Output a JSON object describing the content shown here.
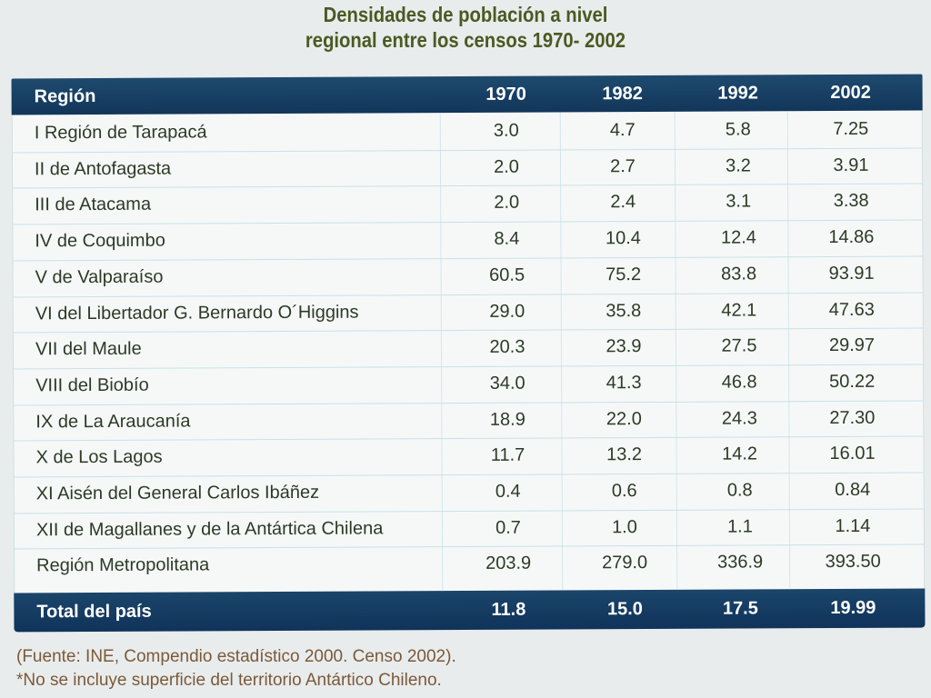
{
  "title": {
    "line1": "Densidades de población a nivel",
    "line2": "regional entre los censos 1970- 2002"
  },
  "table": {
    "headers": [
      "Región",
      "1970",
      "1982",
      "1992",
      "2002"
    ],
    "rows": [
      [
        "I Región de Tarapacá",
        "3.0",
        "4.7",
        "5.8",
        "7.25"
      ],
      [
        "II de Antofagasta",
        "2.0",
        "2.7",
        "3.2",
        "3.91"
      ],
      [
        "III de Atacama",
        "2.0",
        "2.4",
        "3.1",
        "3.38"
      ],
      [
        "IV de Coquimbo",
        "8.4",
        "10.4",
        "12.4",
        "14.86"
      ],
      [
        "V de Valparaíso",
        "60.5",
        "75.2",
        "83.8",
        "93.91"
      ],
      [
        "VI del Libertador G. Bernardo O´Higgins",
        "29.0",
        "35.8",
        "42.1",
        "47.63"
      ],
      [
        "VII del Maule",
        "20.3",
        "23.9",
        "27.5",
        "29.97"
      ],
      [
        "VIII del Biobío",
        "34.0",
        "41.3",
        "46.8",
        "50.22"
      ],
      [
        "IX de La Araucanía",
        "18.9",
        "22.0",
        "24.3",
        "27.30"
      ],
      [
        "X de Los Lagos",
        "11.7",
        "13.2",
        "14.2",
        "16.01"
      ],
      [
        "XI Aisén del General Carlos Ibáñez",
        "0.4",
        "0.6",
        "0.8",
        "0.84"
      ],
      [
        "XII de Magallanes y de la Antártica Chilena",
        "0.7",
        "1.0",
        "1.1",
        "1.14"
      ],
      [
        "Región Metropolitana",
        "203.9",
        "279.0",
        "336.9",
        "393.50"
      ]
    ],
    "total": [
      "Total del país",
      "11.8",
      "15.0",
      "17.5",
      "19.99"
    ]
  },
  "source": {
    "line1": "(Fuente: INE, Compendio estadístico 2000. Censo 2002).",
    "line2": "*No se incluye superficie del territorio Antártico Chileno."
  }
}
